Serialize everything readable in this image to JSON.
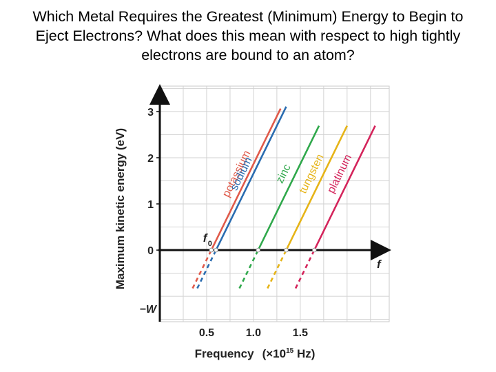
{
  "slide": {
    "title": "Which Metal Requires the Greatest (Minimum) Energy to Begin to Eject Electrons?  What does this mean with respect to high tightly electrons are bound to an atom?"
  },
  "chart_data": {
    "type": "line",
    "xlabel": "Frequency",
    "xunit_prefix": "(×10",
    "xunit_exp": "15",
    "xunit_suffix": " Hz)",
    "ylabel": "Maximum kinetic energy (eV)",
    "xlim": [
      0.0,
      2.45
    ],
    "ylim": [
      -1.55,
      3.55
    ],
    "grid": true,
    "x_ticks": [
      0.5,
      1.0,
      1.5
    ],
    "x_tick_labels": [
      "0.5",
      "1.0",
      "1.5"
    ],
    "y_ticks": [
      3,
      2,
      1,
      0
    ],
    "y_tick_labels": [
      "3",
      "2",
      "1",
      "0"
    ],
    "axis_annotations": {
      "threshold_label": "f",
      "threshold_sub": "0",
      "x_axis_end_label": "f",
      "work_function_label": "−W"
    },
    "series": [
      {
        "name": "potassium",
        "color": "#e05a4a",
        "f0": 0.55,
        "x_start": 0.35,
        "x_end": 1.29
      },
      {
        "name": "sodium",
        "color": "#2a6cb0",
        "f0": 0.6,
        "x_start": 0.4,
        "x_end": 1.35
      },
      {
        "name": "zinc",
        "color": "#2fa84b",
        "f0": 1.05,
        "x_start": 0.85,
        "x_end": 1.7
      },
      {
        "name": "tungsten",
        "color": "#e6b417",
        "f0": 1.35,
        "x_start": 1.15,
        "x_end": 2.0
      },
      {
        "name": "platinum",
        "color": "#d4245b",
        "f0": 1.65,
        "x_start": 1.45,
        "x_end": 2.3
      }
    ],
    "slope_ev_per_unit": 4.14,
    "dashed_below_zero": true
  }
}
